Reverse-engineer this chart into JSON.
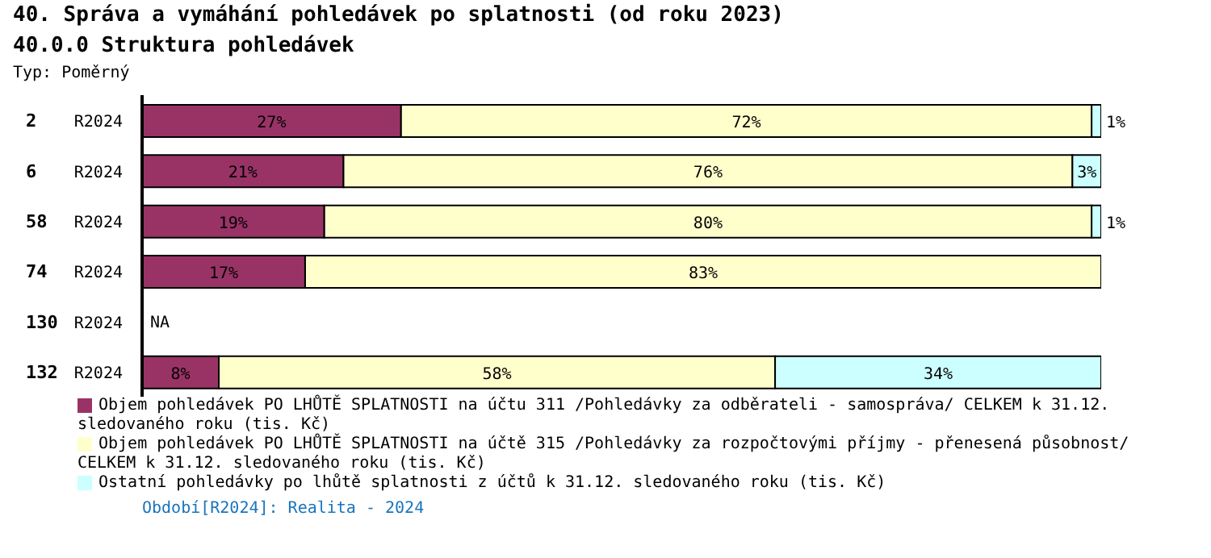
{
  "chart_data": {
    "type": "bar",
    "orientation": "horizontal",
    "stacked": true,
    "title": "40. Správa a vymáhání pohledávek po splatnosti (od roku 2023)",
    "subtitle": "40.0.0 Struktura pohledávek",
    "categories": [
      "2",
      "6",
      "58",
      "74",
      "130",
      "132"
    ],
    "y2_categories": [
      "R2024",
      "R2024",
      "R2024",
      "R2024",
      "R2024",
      "R2024"
    ],
    "xlim": [
      0,
      100
    ],
    "tick_labels": "y",
    "legend": "bottom",
    "annotations": [
      "Typ: Poměrný",
      "NA",
      "Období[R2024]: Realita - 2024"
    ],
    "series": [
      {
        "name": "Objem pohledávek PO LHŮTĚ SPLATNOSTI na účtu 311 /Pohledávky za odběrateli - samospráva/ CELKEM k 31.12. sledovaného roku (tis. Kč)",
        "color": "#993366",
        "values": [
          27,
          21,
          19,
          17,
          null,
          8
        ],
        "value_labels": [
          "27%",
          "21%",
          "19%",
          "17%",
          null,
          "8%"
        ]
      },
      {
        "name": "Objem pohledávek PO LHŮTĚ SPLATNOSTI na účtě 315 /Pohledávky za rozpočtovými příjmy - přenesená působnost/ CELKEM k 31.12. sledovaného roku (tis. Kč)",
        "color": "#ffffcc",
        "values": [
          72,
          76,
          80,
          83,
          null,
          58
        ],
        "value_labels": [
          "72%",
          "76%",
          "80%",
          "83%",
          null,
          "58%"
        ]
      },
      {
        "name": "Ostatní pohledávky po lhůtě splatnosti z účtů k 31.12. sledovaného roku (tis. Kč)",
        "color": "#ccffff",
        "values": [
          1,
          3,
          1,
          null,
          null,
          34
        ],
        "value_labels": [
          "1%",
          "3%",
          "1%",
          null,
          null,
          "34%"
        ]
      }
    ]
  }
}
